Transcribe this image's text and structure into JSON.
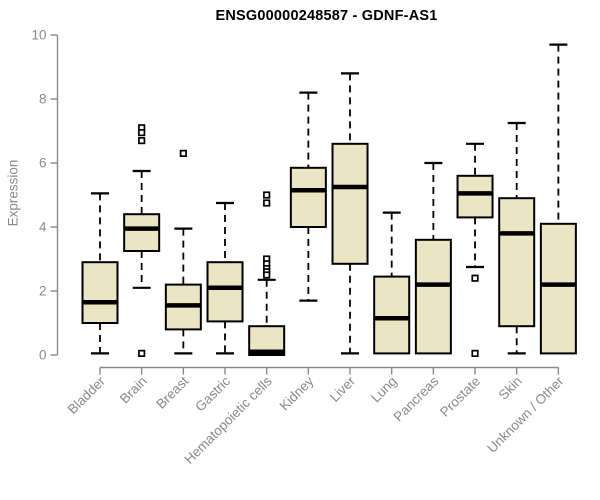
{
  "chart_data": {
    "type": "box",
    "title": "ENSG00000248587 - GDNF-AS1",
    "ylabel": "Expression",
    "xlabel": "",
    "ylim": [
      0,
      10
    ],
    "yticks": [
      "0",
      "2",
      "4",
      "6",
      "8",
      "10"
    ],
    "grid": false,
    "legend": "none",
    "colors": {
      "box_fill": "#ECE5C4",
      "box_border": "#000000",
      "median": "#000000",
      "whisker": "#000000",
      "outlier": "#000000",
      "axis": "#8a8a8a",
      "text": "#8a8a8a",
      "title": "#000000"
    },
    "categories": [
      "Bladder",
      "Brain",
      "Breast",
      "Gastric",
      "Hematopoietic cells",
      "Kidney",
      "Liver",
      "Lung",
      "Pancreas",
      "Prostate",
      "Skin",
      "Unknown / Other"
    ],
    "boxes": [
      {
        "label": "Bladder",
        "low": 0.05,
        "q1": 1.0,
        "median": 1.65,
        "q3": 2.9,
        "high": 5.05,
        "outliers": []
      },
      {
        "label": "Brain",
        "low": 2.1,
        "q1": 3.25,
        "median": 3.95,
        "q3": 4.4,
        "high": 5.75,
        "outliers": [
          7.1,
          6.95,
          6.7,
          0.05
        ]
      },
      {
        "label": "Breast",
        "low": 0.05,
        "q1": 0.8,
        "median": 1.55,
        "q3": 2.2,
        "high": 3.95,
        "outliers": [
          6.3
        ]
      },
      {
        "label": "Gastric",
        "low": 0.05,
        "q1": 1.05,
        "median": 2.1,
        "q3": 2.9,
        "high": 4.75,
        "outliers": []
      },
      {
        "label": "Hematopoietic cells",
        "low": 0.0,
        "q1": 0.0,
        "median": 0.1,
        "q3": 0.9,
        "high": 2.35,
        "outliers": [
          5.0,
          4.75,
          3.0,
          2.85,
          2.7,
          2.6,
          2.5
        ]
      },
      {
        "label": "Kidney",
        "low": 1.7,
        "q1": 4.0,
        "median": 5.15,
        "q3": 5.85,
        "high": 8.2,
        "outliers": []
      },
      {
        "label": "Liver",
        "low": 0.05,
        "q1": 2.85,
        "median": 5.25,
        "q3": 6.6,
        "high": 8.8,
        "outliers": []
      },
      {
        "label": "Lung",
        "low": 0.05,
        "q1": 0.05,
        "median": 1.15,
        "q3": 2.45,
        "high": 4.45,
        "outliers": []
      },
      {
        "label": "Pancreas",
        "low": 0.05,
        "q1": 0.05,
        "median": 2.2,
        "q3": 3.6,
        "high": 6.0,
        "outliers": []
      },
      {
        "label": "Prostate",
        "low": 2.75,
        "q1": 4.3,
        "median": 5.05,
        "q3": 5.6,
        "high": 6.6,
        "outliers": [
          2.4,
          0.05
        ]
      },
      {
        "label": "Skin",
        "low": 0.05,
        "q1": 0.9,
        "median": 3.8,
        "q3": 4.9,
        "high": 7.25,
        "outliers": []
      },
      {
        "label": "Unknown / Other",
        "low": 0.05,
        "q1": 0.05,
        "median": 2.2,
        "q3": 4.1,
        "high": 9.7,
        "outliers": []
      }
    ]
  }
}
